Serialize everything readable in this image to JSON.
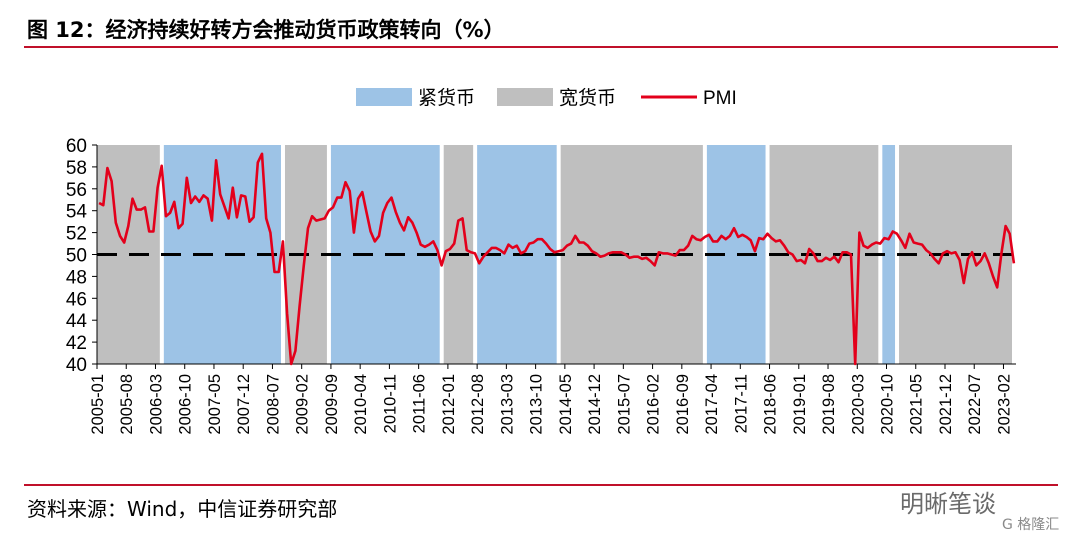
{
  "header": {
    "title": "图 12：经济持续好转方会推动货币政策转向（%）"
  },
  "footer": {
    "source": "资料来源：Wind，中信证券研究部"
  },
  "watermark": {
    "text": "明晰笔谈",
    "sub": "G 格隆汇"
  },
  "colors": {
    "tight": "#9dc3e6",
    "loose": "#bfbfbf",
    "pmi": "#e3001b",
    "rule": "#c0102a",
    "baseline": "#000000"
  },
  "chart_data": {
    "type": "line",
    "ylim": [
      40,
      60
    ],
    "yticks": [
      40,
      42,
      44,
      46,
      48,
      50,
      52,
      54,
      56,
      58,
      60
    ],
    "x_range": [
      "2005-01",
      "2023-04"
    ],
    "xticks": [
      "2005-01",
      "2005-08",
      "2006-03",
      "2006-10",
      "2007-05",
      "2007-12",
      "2008-07",
      "2009-02",
      "2009-09",
      "2010-04",
      "2010-11",
      "2011-06",
      "2012-01",
      "2012-08",
      "2013-03",
      "2013-10",
      "2014-05",
      "2014-12",
      "2015-07",
      "2016-02",
      "2016-09",
      "2017-04",
      "2017-11",
      "2018-06",
      "2019-01",
      "2019-08",
      "2020-03",
      "2020-10",
      "2021-05",
      "2021-12",
      "2022-07",
      "2023-02"
    ],
    "reference_line": 50,
    "legend": [
      {
        "key": "tight",
        "label": "紧货币"
      },
      {
        "key": "loose",
        "label": "宽货币"
      },
      {
        "key": "pmi",
        "label": "PMI"
      }
    ],
    "regimes": [
      {
        "start": "2005-01",
        "end": "2006-04",
        "type": "loose"
      },
      {
        "start": "2006-05",
        "end": "2008-09",
        "type": "tight"
      },
      {
        "start": "2008-10",
        "end": "2009-08",
        "type": "loose"
      },
      {
        "start": "2009-09",
        "end": "2011-11",
        "type": "tight"
      },
      {
        "start": "2011-12",
        "end": "2012-07",
        "type": "loose"
      },
      {
        "start": "2012-08",
        "end": "2014-03",
        "type": "tight"
      },
      {
        "start": "2014-04",
        "end": "2017-02",
        "type": "loose"
      },
      {
        "start": "2017-03",
        "end": "2018-05",
        "type": "tight"
      },
      {
        "start": "2018-06",
        "end": "2020-08",
        "type": "loose"
      },
      {
        "start": "2020-09",
        "end": "2020-12",
        "type": "tight"
      },
      {
        "start": "2021-01",
        "end": "2023-04",
        "type": "loose"
      }
    ],
    "series": [
      {
        "name": "PMI",
        "start": "2005-01",
        "values": [
          54.7,
          54.5,
          57.9,
          56.7,
          52.9,
          51.7,
          51.1,
          52.6,
          55.1,
          54.1,
          54.1,
          54.3,
          52.1,
          52.1,
          56.1,
          58.1,
          53.5,
          53.8,
          54.8,
          52.4,
          52.8,
          57.0,
          54.7,
          55.3,
          54.8,
          55.4,
          55.1,
          53.1,
          58.6,
          55.5,
          54.4,
          53.3,
          56.1,
          53.4,
          55.4,
          55.3,
          53.0,
          53.4,
          58.4,
          59.2,
          53.3,
          52.0,
          48.4,
          48.4,
          51.2,
          44.6,
          38.8,
          41.2,
          45.3,
          49.0,
          52.4,
          53.5,
          53.1,
          53.2,
          53.3,
          54.0,
          54.3,
          55.2,
          55.2,
          56.6,
          55.8,
          52.0,
          55.1,
          55.7,
          53.9,
          52.1,
          51.2,
          51.7,
          53.8,
          54.7,
          55.2,
          53.9,
          52.9,
          52.2,
          53.4,
          52.9,
          52.0,
          50.9,
          50.7,
          50.9,
          51.2,
          50.4,
          49.0,
          50.3,
          50.5,
          51.0,
          53.1,
          53.3,
          50.4,
          50.2,
          50.1,
          49.2,
          49.8,
          50.2,
          50.6,
          50.6,
          50.4,
          50.1,
          50.9,
          50.6,
          50.8,
          50.1,
          50.3,
          51.0,
          51.1,
          51.4,
          51.4,
          51.0,
          50.5,
          50.2,
          50.3,
          50.4,
          50.8,
          51.0,
          51.7,
          51.1,
          51.1,
          50.8,
          50.3,
          50.1,
          49.8,
          49.9,
          50.1,
          50.2,
          50.2,
          50.2,
          50.0,
          49.7,
          49.8,
          49.8,
          49.6,
          49.7,
          49.4,
          49.0,
          50.2,
          50.1,
          50.1,
          50.0,
          49.9,
          50.4,
          50.4,
          50.8,
          51.7,
          51.4,
          51.3,
          51.6,
          51.8,
          51.2,
          51.2,
          51.7,
          51.4,
          51.7,
          52.4,
          51.6,
          51.8,
          51.6,
          51.3,
          50.3,
          51.5,
          51.4,
          51.9,
          51.5,
          51.2,
          51.3,
          50.8,
          50.2,
          50.0,
          49.4,
          49.5,
          49.2,
          50.5,
          50.1,
          49.4,
          49.4,
          49.7,
          49.5,
          49.8,
          49.3,
          50.2,
          50.2,
          50.0,
          35.7,
          52.0,
          50.8,
          50.6,
          50.9,
          51.1,
          51.0,
          51.5,
          51.4,
          52.1,
          51.9,
          51.3,
          50.6,
          51.9,
          51.1,
          51.0,
          50.9,
          50.4,
          50.1,
          49.6,
          49.2,
          50.1,
          50.3,
          50.1,
          50.2,
          49.5,
          47.4,
          49.6,
          50.2,
          49.0,
          49.4,
          50.1,
          49.2,
          48.0,
          47.0,
          50.1,
          52.6,
          51.9,
          49.2
        ]
      }
    ]
  }
}
